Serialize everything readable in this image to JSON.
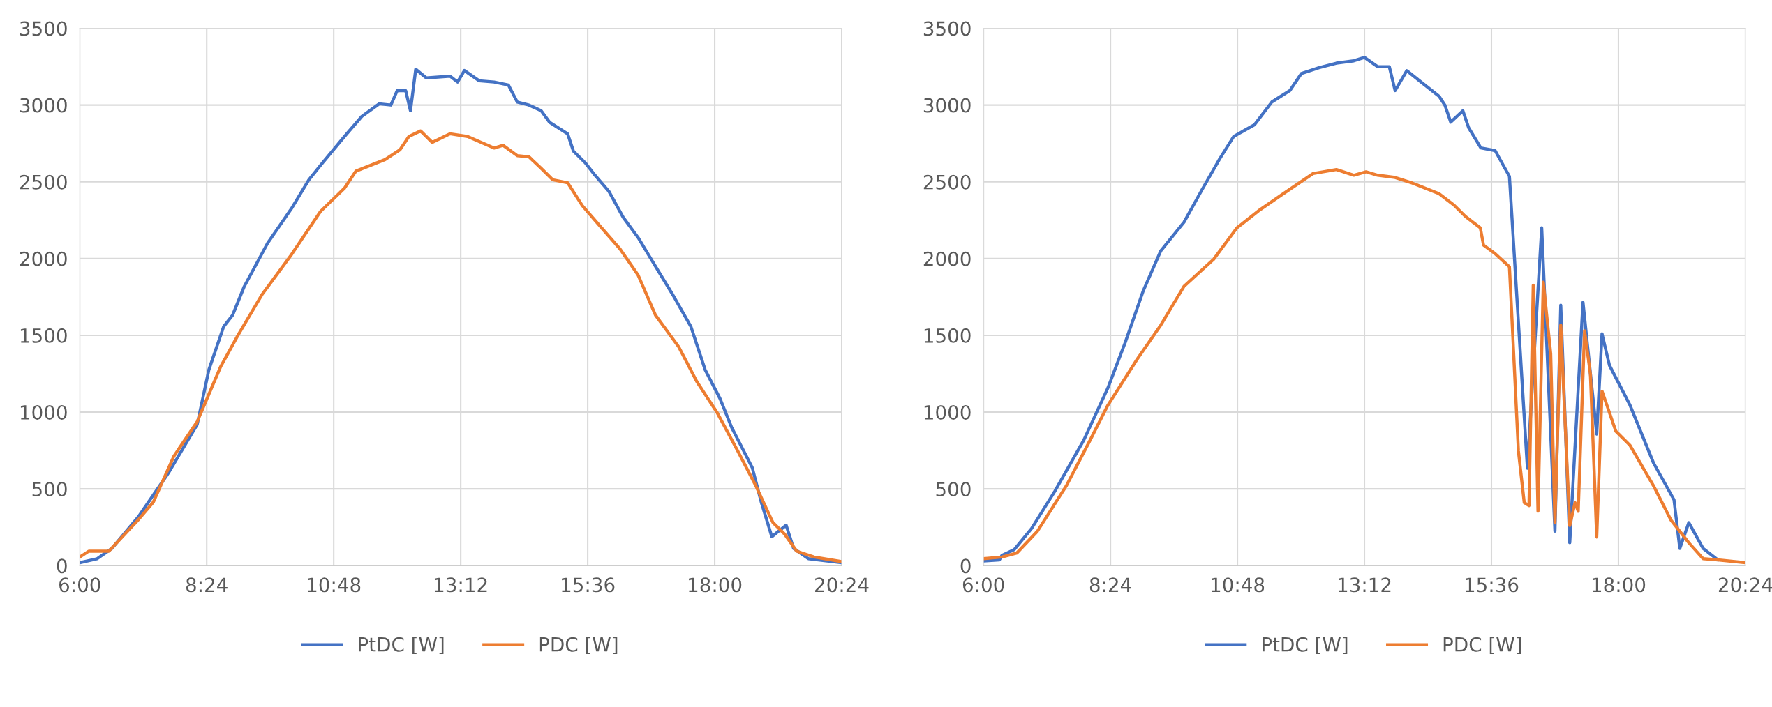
{
  "chart_data": [
    {
      "type": "line",
      "xlim": [
        6,
        20.4
      ],
      "ylim": [
        0,
        3500
      ],
      "xticks": [
        {
          "value": 6,
          "label": "6:00"
        },
        {
          "value": 8.4,
          "label": "8:24"
        },
        {
          "value": 10.8,
          "label": "10:48"
        },
        {
          "value": 13.2,
          "label": "13:12"
        },
        {
          "value": 15.6,
          "label": "15:36"
        },
        {
          "value": 18,
          "label": "18:00"
        },
        {
          "value": 20.4,
          "label": "20:24"
        }
      ],
      "yticks": [
        0,
        500,
        1000,
        1500,
        2000,
        2500,
        3000,
        3500
      ],
      "grid": true,
      "legend": "bottom",
      "marker": "none",
      "line_style": "solid",
      "series": [
        {
          "name": "PtDC [W]",
          "color": "#4472c4",
          "x": [
            6.0,
            6.33,
            6.61,
            7.11,
            7.67,
            8.22,
            8.44,
            8.72,
            8.89,
            9.11,
            9.55,
            10.0,
            10.33,
            10.55,
            11.0,
            11.33,
            11.66,
            11.88,
            12.0,
            12.16,
            12.25,
            12.35,
            12.55,
            13.0,
            13.14,
            13.27,
            13.55,
            13.83,
            14.1,
            14.27,
            14.49,
            14.72,
            14.88,
            15.05,
            15.22,
            15.33,
            15.55,
            15.72,
            16.0,
            16.27,
            16.55,
            16.88,
            17.21,
            17.55,
            17.82,
            18.1,
            18.32,
            18.71,
            18.88,
            19.08,
            19.21,
            19.35,
            19.49,
            19.77,
            20.4
          ],
          "values": [
            19,
            45,
            113,
            319,
            600,
            919,
            1275,
            1557,
            1632,
            1819,
            2100,
            2325,
            2513,
            2607,
            2794,
            2926,
            3008,
            3000,
            3094,
            3094,
            2963,
            3233,
            3177,
            3188,
            3150,
            3225,
            3158,
            3150,
            3131,
            3019,
            3000,
            2963,
            2888,
            2850,
            2813,
            2700,
            2625,
            2550,
            2438,
            2269,
            2138,
            1950,
            1763,
            1557,
            1275,
            1088,
            900,
            638,
            413,
            188,
            225,
            263,
            113,
            45,
            19
          ]
        },
        {
          "name": "PDC [W]",
          "color": "#ed7d31",
          "x": [
            6.0,
            6.17,
            6.55,
            7.11,
            7.39,
            7.78,
            8.22,
            8.66,
            8.99,
            9.44,
            10.0,
            10.55,
            11.0,
            11.22,
            11.77,
            12.05,
            12.22,
            12.44,
            12.66,
            13.0,
            13.33,
            13.83,
            14.0,
            14.27,
            14.49,
            14.72,
            14.94,
            15.22,
            15.5,
            15.83,
            16.21,
            16.55,
            16.88,
            17.32,
            17.66,
            18.05,
            18.43,
            18.77,
            19.1,
            19.32,
            19.55,
            19.88,
            20.4
          ],
          "values": [
            56,
            94,
            94,
            300,
            413,
            713,
            938,
            1294,
            1500,
            1763,
            2025,
            2307,
            2457,
            2570,
            2645,
            2708,
            2795,
            2832,
            2757,
            2813,
            2795,
            2720,
            2738,
            2670,
            2663,
            2588,
            2513,
            2494,
            2344,
            2213,
            2063,
            1894,
            1632,
            1425,
            1200,
            994,
            750,
            525,
            281,
            206,
            94,
            56,
            26
          ]
        }
      ]
    },
    {
      "type": "line",
      "xlim": [
        6,
        20.4
      ],
      "ylim": [
        0,
        3500
      ],
      "xticks": [
        {
          "value": 6,
          "label": "6:00"
        },
        {
          "value": 8.4,
          "label": "8:24"
        },
        {
          "value": 10.8,
          "label": "10:48"
        },
        {
          "value": 13.2,
          "label": "13:12"
        },
        {
          "value": 15.6,
          "label": "15:36"
        },
        {
          "value": 18,
          "label": "18:00"
        },
        {
          "value": 20.4,
          "label": "20:24"
        }
      ],
      "yticks": [
        0,
        500,
        1000,
        1500,
        2000,
        2500,
        3000,
        3500
      ],
      "grid": true,
      "legend": "bottom",
      "marker": "none",
      "line_style": "solid",
      "series": [
        {
          "name": "PtDC [W]",
          "color": "#4472c4",
          "x": [
            6.0,
            6.3,
            6.35,
            6.58,
            6.91,
            7.35,
            7.9,
            8.35,
            8.68,
            9.02,
            9.35,
            9.79,
            10.12,
            10.46,
            10.73,
            11.12,
            11.45,
            11.79,
            12.01,
            12.34,
            12.67,
            13.0,
            13.2,
            13.45,
            13.67,
            13.78,
            14.0,
            14.61,
            14.72,
            14.83,
            15.06,
            15.17,
            15.4,
            15.67,
            15.94,
            16.28,
            16.55,
            16.8,
            16.91,
            17.08,
            17.33,
            17.59,
            17.69,
            17.83,
            18.22,
            18.66,
            19.05,
            19.16,
            19.33,
            19.6,
            19.88
          ],
          "values": [
            30,
            37,
            67,
            104,
            242,
            485,
            820,
            1156,
            1454,
            1790,
            2050,
            2237,
            2442,
            2647,
            2796,
            2871,
            3020,
            3094,
            3206,
            3243,
            3273,
            3288,
            3310,
            3250,
            3250,
            3094,
            3224,
            3057,
            3000,
            2889,
            2963,
            2852,
            2721,
            2703,
            2535,
            634,
            2200,
            224,
            1696,
            149,
            1715,
            857,
            1510,
            1305,
            1044,
            671,
            429,
            112,
            280,
            112,
            37
          ]
        },
        {
          "name": "PDC [W]",
          "color": "#ed7d31",
          "x": [
            6.0,
            6.35,
            6.63,
            7.02,
            7.57,
            8.02,
            8.35,
            8.9,
            9.35,
            9.79,
            10.35,
            10.79,
            11.23,
            11.67,
            12.23,
            12.67,
            13.0,
            13.23,
            13.45,
            13.78,
            14.11,
            14.61,
            14.89,
            15.11,
            15.39,
            15.45,
            15.67,
            15.94,
            16.11,
            16.22,
            16.31,
            16.39,
            16.48,
            16.58,
            16.72,
            16.8,
            16.91,
            17.08,
            17.18,
            17.24,
            17.36,
            17.47,
            17.59,
            17.69,
            17.95,
            18.22,
            18.66,
            18.99,
            19.33,
            19.6,
            19.88,
            20.4
          ],
          "values": [
            45,
            56,
            82,
            224,
            522,
            820,
            1044,
            1342,
            1566,
            1819,
            1995,
            2200,
            2319,
            2423,
            2554,
            2580,
            2543,
            2565,
            2543,
            2528,
            2491,
            2423,
            2349,
            2274,
            2200,
            2088,
            2032,
            1946,
            746,
            410,
            391,
            1827,
            354,
            1846,
            1379,
            280,
            1566,
            261,
            410,
            354,
            1529,
            1249,
            186,
            1137,
            876,
            783,
            522,
            298,
            149,
            45,
            37,
            19
          ]
        }
      ]
    }
  ]
}
